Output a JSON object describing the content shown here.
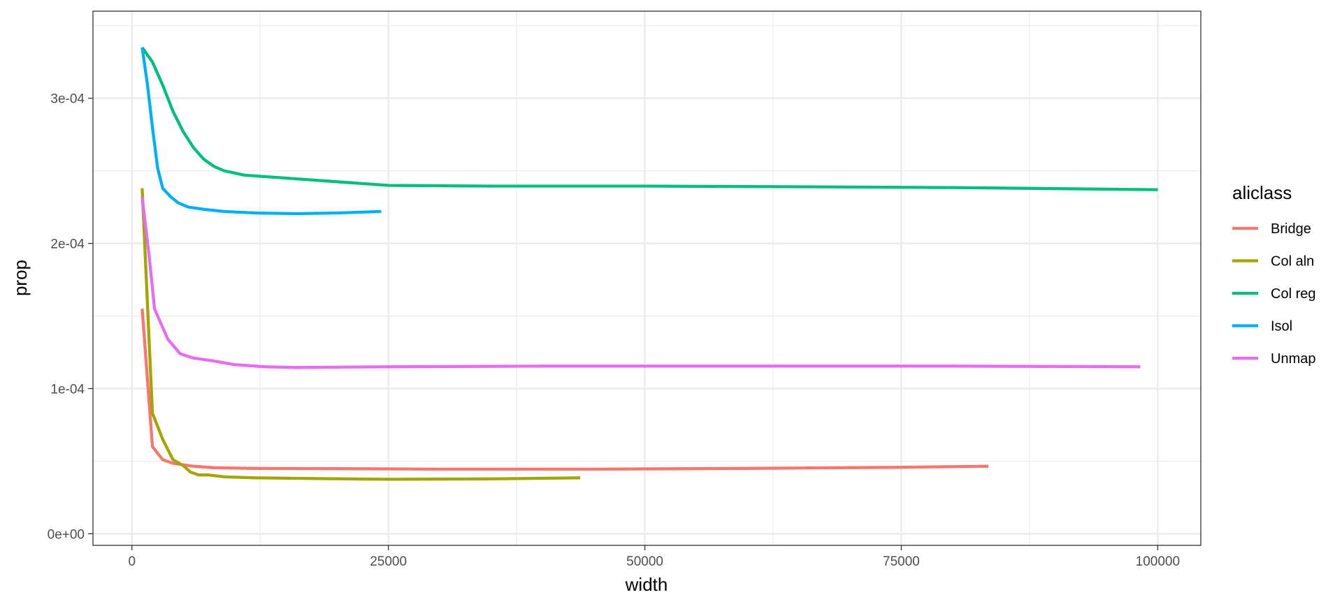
{
  "chart_data": {
    "type": "line",
    "title": "",
    "xlabel": "width",
    "ylabel": "prop",
    "xlim": [
      -3800,
      104200
    ],
    "ylim": [
      -8e-06,
      0.00036
    ],
    "x_ticks": [
      {
        "value": 0,
        "label": "0"
      },
      {
        "value": 25000,
        "label": "25000"
      },
      {
        "value": 50000,
        "label": "50000"
      },
      {
        "value": 75000,
        "label": "75000"
      },
      {
        "value": 100000,
        "label": "100000"
      }
    ],
    "x_minor_ticks": [
      12500,
      37500,
      62500,
      87500
    ],
    "y_ticks": [
      {
        "value": 0,
        "label": "0e+00"
      },
      {
        "value": 0.0001,
        "label": "1e-04"
      },
      {
        "value": 0.0002,
        "label": "2e-04"
      },
      {
        "value": 0.0003,
        "label": "3e-04"
      }
    ],
    "y_minor_ticks": [
      5e-05,
      0.00015,
      0.00025,
      0.00035
    ],
    "grid": true,
    "legend": {
      "title": "aliclass",
      "position": "right"
    },
    "series": [
      {
        "name": "Bridge",
        "color": "#F8766D",
        "points": [
          [
            1000,
            0.000155
          ],
          [
            2000,
            6e-05
          ],
          [
            3000,
            5.1e-05
          ],
          [
            4000,
            4.85e-05
          ],
          [
            5000,
            4.75e-05
          ],
          [
            6000,
            4.65e-05
          ],
          [
            8000,
            4.55e-05
          ],
          [
            12000,
            4.5e-05
          ],
          [
            20000,
            4.48e-05
          ],
          [
            30000,
            4.45e-05
          ],
          [
            45000,
            4.45e-05
          ],
          [
            60000,
            4.5e-05
          ],
          [
            75000,
            4.58e-05
          ],
          [
            83500,
            4.65e-05
          ]
        ]
      },
      {
        "name": "Col aln",
        "color": "#A3A500",
        "points": [
          [
            1000,
            0.000238
          ],
          [
            2000,
            8.3e-05
          ],
          [
            3000,
            6.5e-05
          ],
          [
            4000,
            5.1e-05
          ],
          [
            5000,
            4.7e-05
          ],
          [
            5700,
            4.25e-05
          ],
          [
            6500,
            4.05e-05
          ],
          [
            7500,
            4.05e-05
          ],
          [
            9000,
            3.92e-05
          ],
          [
            12000,
            3.85e-05
          ],
          [
            18000,
            3.8e-05
          ],
          [
            25000,
            3.75e-05
          ],
          [
            35000,
            3.78e-05
          ],
          [
            43700,
            3.85e-05
          ]
        ]
      },
      {
        "name": "Col reg",
        "color": "#00BF7D",
        "points": [
          [
            1000,
            0.000335
          ],
          [
            2000,
            0.000325
          ],
          [
            3000,
            0.000309
          ],
          [
            4000,
            0.000291
          ],
          [
            5000,
            0.000277
          ],
          [
            6000,
            0.000266
          ],
          [
            7000,
            0.000258
          ],
          [
            8000,
            0.000253
          ],
          [
            9000,
            0.00025
          ],
          [
            11000,
            0.000247
          ],
          [
            14000,
            0.0002455
          ],
          [
            17000,
            0.000244
          ],
          [
            20000,
            0.0002425
          ],
          [
            25000,
            0.00024
          ],
          [
            35000,
            0.0002395
          ],
          [
            50000,
            0.0002395
          ],
          [
            65000,
            0.000239
          ],
          [
            80000,
            0.0002385
          ],
          [
            100000,
            0.000237
          ]
        ]
      },
      {
        "name": "Isol",
        "color": "#00B0F6",
        "points": [
          [
            1000,
            0.000335
          ],
          [
            1500,
            0.00031
          ],
          [
            2000,
            0.00028
          ],
          [
            2500,
            0.000252
          ],
          [
            3000,
            0.000238
          ],
          [
            3800,
            0.000232
          ],
          [
            4500,
            0.000228
          ],
          [
            5500,
            0.000225
          ],
          [
            7000,
            0.0002235
          ],
          [
            9000,
            0.000222
          ],
          [
            12000,
            0.000221
          ],
          [
            16000,
            0.0002205
          ],
          [
            20000,
            0.000221
          ],
          [
            24300,
            0.000222
          ]
        ]
      },
      {
        "name": "Unmap",
        "color": "#E76BF3",
        "points": [
          [
            1000,
            0.000232
          ],
          [
            1700,
            0.00019
          ],
          [
            2200,
            0.000155
          ],
          [
            3500,
            0.000134
          ],
          [
            4700,
            0.000124
          ],
          [
            6000,
            0.000121
          ],
          [
            8000,
            0.000119
          ],
          [
            10000,
            0.0001165
          ],
          [
            13000,
            0.000115
          ],
          [
            16000,
            0.0001145
          ],
          [
            25000,
            0.000115
          ],
          [
            40000,
            0.0001155
          ],
          [
            60000,
            0.0001155
          ],
          [
            80000,
            0.0001155
          ],
          [
            98300,
            0.000115
          ]
        ]
      }
    ]
  }
}
